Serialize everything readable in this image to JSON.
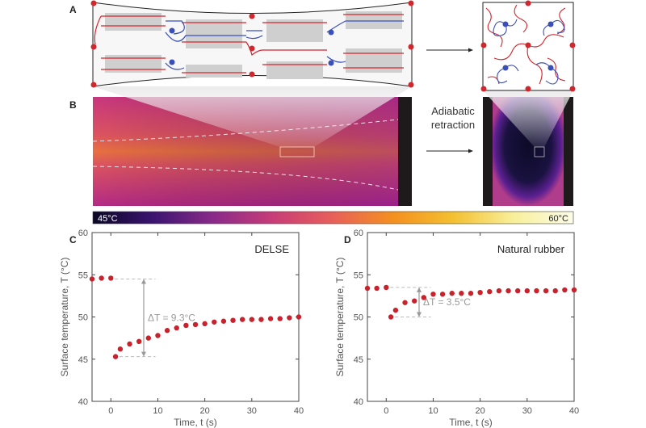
{
  "panel_labels": {
    "a": "A",
    "b": "B",
    "c": "C",
    "d": "D"
  },
  "transition_label": [
    "Adiabatic",
    "retraction"
  ],
  "colorbar": {
    "min_label": "45°C",
    "max_label": "60°C",
    "colors": [
      "#0b0724",
      "#3b1470",
      "#8a2a8a",
      "#c83c78",
      "#e8605a",
      "#f4901f",
      "#f4c030",
      "#f8ef9a",
      "#fcfce8"
    ]
  },
  "colors": {
    "point": "#c8232c",
    "arrow": "#999999",
    "chain_red": "#d0262e",
    "chain_blue": "#3a4fb8"
  },
  "chart_data": [
    {
      "type": "scatter",
      "panel": "C",
      "annotation_title": "DELSE",
      "xlabel": "Time, t (s)",
      "ylabel": "Surface temperature, T (°C)",
      "xlim": [
        -4,
        40
      ],
      "ylim": [
        40,
        60
      ],
      "xticks": [
        0,
        10,
        20,
        30,
        40
      ],
      "yticks": [
        40,
        45,
        50,
        55,
        60
      ],
      "grid": false,
      "delta_label": "ΔT = 9.3°C",
      "delta": {
        "x": 7,
        "from": 54.5,
        "to": 45.3
      },
      "x": [
        -4,
        -2,
        0,
        1,
        2,
        4,
        6,
        8,
        10,
        12,
        14,
        16,
        18,
        20,
        22,
        24,
        26,
        28,
        30,
        32,
        34,
        36,
        38,
        40
      ],
      "y": [
        54.5,
        54.6,
        54.6,
        45.3,
        46.2,
        46.8,
        47.1,
        47.5,
        47.8,
        48.4,
        48.7,
        49.0,
        49.1,
        49.2,
        49.4,
        49.5,
        49.6,
        49.7,
        49.7,
        49.7,
        49.8,
        49.8,
        49.9,
        50.0
      ]
    },
    {
      "type": "scatter",
      "panel": "D",
      "annotation_title": "Natural rubber",
      "xlabel": "Time, t (s)",
      "ylabel": "Surface temperature, T (°C)",
      "xlim": [
        -4,
        40
      ],
      "ylim": [
        40,
        60
      ],
      "xticks": [
        0,
        10,
        20,
        30,
        40
      ],
      "yticks": [
        40,
        45,
        50,
        55,
        60
      ],
      "grid": false,
      "delta_label": "ΔT = 3.5°C",
      "delta": {
        "x": 7,
        "from": 53.5,
        "to": 50.0
      },
      "x": [
        -4,
        -2,
        0,
        1,
        2,
        4,
        6,
        8,
        10,
        12,
        14,
        16,
        18,
        20,
        22,
        24,
        26,
        28,
        30,
        32,
        34,
        36,
        38,
        40
      ],
      "y": [
        53.4,
        53.4,
        53.5,
        50.0,
        50.8,
        51.7,
        51.9,
        52.3,
        52.7,
        52.7,
        52.8,
        52.8,
        52.8,
        52.9,
        53.0,
        53.1,
        53.1,
        53.1,
        53.1,
        53.1,
        53.1,
        53.1,
        53.2,
        53.2
      ]
    }
  ]
}
